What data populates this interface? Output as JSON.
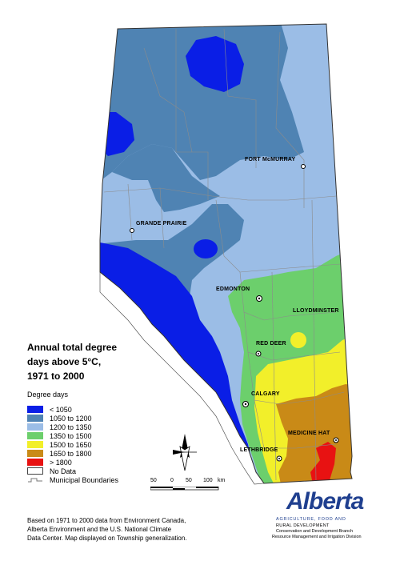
{
  "title": {
    "line1": "Annual total degree",
    "line2": "days above 5°C,",
    "line3": "1971 to 2000"
  },
  "legend": {
    "heading": "Degree days",
    "items": [
      {
        "label": "< 1050",
        "color": "#0a1ee6"
      },
      {
        "label": "1050 to 1200",
        "color": "#4f83b3"
      },
      {
        "label": "1200 to 1350",
        "color": "#9bbde6"
      },
      {
        "label": "1350 to 1500",
        "color": "#6ccf6c"
      },
      {
        "label": "1500 to 1650",
        "color": "#f2ef2a"
      },
      {
        "label": "1650 to 1800",
        "color": "#c98a17"
      },
      {
        "label": "> 1800",
        "color": "#e81212"
      }
    ],
    "no_data": "No Data",
    "municipal": "Municipal Boundaries"
  },
  "cities": {
    "fort_mcmurray": "FORT McMURRAY",
    "grande_prairie": "GRANDE PRAIRIE",
    "edmonton": "EDMONTON",
    "lloydminster": "LLOYDMINSTER",
    "red_deer": "RED DEER",
    "calgary": "CALGARY",
    "medicine_hat": "MEDICINE HAT",
    "lethbridge": "LETHBRIDGE"
  },
  "scale": {
    "t1": "50",
    "t2": "0",
    "t3": "50",
    "t4": "100",
    "unit": "km"
  },
  "credit": {
    "line1": "Based on 1971 to 2000 data from Environment Canada,",
    "line2": "Alberta Environment and the U.S. National Climate",
    "line3": "Data Center.  Map displayed on Township generalization."
  },
  "logo": {
    "name": "Alberta",
    "sub1": "AGRICULTURE, FOOD AND",
    "sub1b": "RURAL DEVELOPMENT",
    "sub2": "Conservation and Development Branch",
    "sub3": "Resource Management and Irrigation Division"
  }
}
